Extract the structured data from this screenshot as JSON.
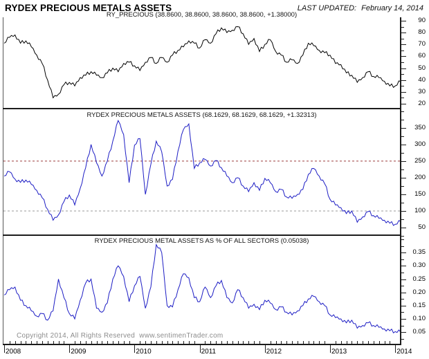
{
  "header": {
    "title": "RYDEX PRECIOUS METALS ASSETS",
    "last_updated_label": "LAST UPDATED:",
    "last_updated_date": "February 14, 2014"
  },
  "footer": {
    "copyright": "Copyright 2014, All Rights Reserved  www.sentimenTrader.com"
  },
  "chart_data": {
    "type": "line",
    "x_start_year": 2008,
    "points_per_year": 12,
    "xlim": [
      2008,
      2014.17
    ],
    "grid": "off",
    "legend": "none",
    "xticks": [
      {
        "v": 2008,
        "t": "2008"
      },
      {
        "v": 2009,
        "t": "2009"
      },
      {
        "v": 2010,
        "t": "2010"
      },
      {
        "v": 2011,
        "t": "2011"
      },
      {
        "v": 2012,
        "t": "2012"
      },
      {
        "v": 2013,
        "t": "2013"
      },
      {
        "v": 2014,
        "t": "2014"
      }
    ],
    "panels": [
      {
        "id": "panel-price",
        "label": "RY_PRECIOUS (38.8600, 38.8600, 38.8600, 38.8600, +1.38000)",
        "series_name": "RY_PRECIOUS",
        "color": "#000000",
        "ylim": [
          15.3,
          92.9
        ],
        "minor_step": 5,
        "yticks": [
          {
            "v": 20,
            "t": "20"
          },
          {
            "v": 30,
            "t": "30"
          },
          {
            "v": 40,
            "t": "40"
          },
          {
            "v": 50,
            "t": "50"
          },
          {
            "v": 60,
            "t": "60"
          },
          {
            "v": 70,
            "t": "70"
          },
          {
            "v": 80,
            "t": "80"
          },
          {
            "v": 90,
            "t": "90"
          }
        ],
        "hlines": [],
        "values": [
          71,
          76,
          78,
          71,
          73,
          68,
          61,
          54,
          40,
          25,
          28,
          36,
          38,
          35,
          42,
          44,
          47,
          44,
          42,
          46,
          50,
          47,
          54,
          55,
          52,
          48,
          55,
          59,
          54,
          59,
          55,
          61,
          65,
          68,
          73,
          71,
          67,
          74,
          71,
          79,
          84,
          80,
          82,
          85,
          79,
          70,
          75,
          64,
          70,
          74,
          64,
          61,
          55,
          57,
          54,
          61,
          71,
          69,
          65,
          63,
          61,
          54,
          53,
          46,
          44,
          38,
          42,
          47,
          43,
          42,
          39,
          35,
          35,
          38.86
        ]
      },
      {
        "id": "panel-assets",
        "label": "RYDEX PRECIOUS METALS ASSETS (68.1629, 68.1629, 68.1629, +1.32313)",
        "series_name": "RYDEX PRECIOUS METALS ASSETS",
        "color": "#1c1cc4",
        "ylim": [
          25,
          406
        ],
        "minor_step": 25,
        "yticks": [
          {
            "v": 50,
            "t": "50"
          },
          {
            "v": 100,
            "t": "100"
          },
          {
            "v": 150,
            "t": "150"
          },
          {
            "v": 200,
            "t": "200"
          },
          {
            "v": 250,
            "t": "250"
          },
          {
            "v": 300,
            "t": "300"
          },
          {
            "v": 350,
            "t": "350"
          }
        ],
        "hlines": [
          {
            "v": 250,
            "color": "#9b3b3b"
          },
          {
            "v": 100,
            "color": "#999999"
          }
        ],
        "values": [
          205,
          218,
          196,
          186,
          193,
          180,
          162,
          140,
          105,
          72,
          88,
          128,
          148,
          118,
          168,
          230,
          300,
          245,
          205,
          250,
          310,
          372,
          330,
          185,
          298,
          318,
          150,
          240,
          310,
          278,
          175,
          195,
          280,
          345,
          362,
          228,
          245,
          255,
          235,
          252,
          230,
          205,
          185,
          200,
          175,
          158,
          185,
          162,
          198,
          185,
          158,
          165,
          142,
          138,
          150,
          165,
          210,
          228,
          205,
          182,
          135,
          118,
          110,
          92,
          100,
          66,
          82,
          98,
          86,
          78,
          72,
          63,
          60,
          68.16
        ]
      },
      {
        "id": "panel-pct",
        "label": "RYDEX PRECIOUS METAL ASSETS AS % OF ALL SECTORS (0.05038)",
        "series_name": "RYDEX PRECIOUS METAL ASSETS AS % OF ALL SECTORS",
        "color": "#1c1cc4",
        "ylim": [
          0.006,
          0.413
        ],
        "minor_step": 0.025,
        "yticks": [
          {
            "v": 0.05,
            "t": "0.05"
          },
          {
            "v": 0.1,
            "t": "0.10"
          },
          {
            "v": 0.15,
            "t": "0.15"
          },
          {
            "v": 0.2,
            "t": "0.20"
          },
          {
            "v": 0.25,
            "t": "0.25"
          },
          {
            "v": 0.3,
            "t": "0.30"
          },
          {
            "v": 0.35,
            "t": "0.35"
          }
        ],
        "hlines": [],
        "values": [
          0.19,
          0.21,
          0.22,
          0.17,
          0.15,
          0.13,
          0.11,
          0.12,
          0.095,
          0.13,
          0.25,
          0.18,
          0.12,
          0.1,
          0.17,
          0.235,
          0.25,
          0.14,
          0.125,
          0.16,
          0.25,
          0.3,
          0.26,
          0.165,
          0.225,
          0.26,
          0.14,
          0.22,
          0.38,
          0.35,
          0.15,
          0.145,
          0.21,
          0.27,
          0.255,
          0.18,
          0.165,
          0.22,
          0.18,
          0.225,
          0.245,
          0.18,
          0.16,
          0.21,
          0.18,
          0.14,
          0.155,
          0.135,
          0.17,
          0.16,
          0.135,
          0.145,
          0.125,
          0.115,
          0.13,
          0.15,
          0.175,
          0.185,
          0.165,
          0.15,
          0.115,
          0.105,
          0.1,
          0.085,
          0.095,
          0.065,
          0.075,
          0.085,
          0.075,
          0.068,
          0.062,
          0.055,
          0.052,
          0.05038
        ]
      }
    ]
  }
}
